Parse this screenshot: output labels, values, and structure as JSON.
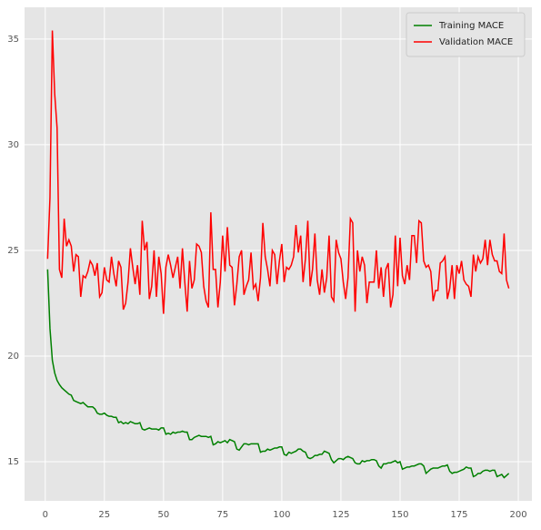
{
  "chart_data": {
    "type": "line",
    "x": [
      1,
      2,
      3,
      4,
      5,
      6,
      7,
      8,
      9,
      10,
      11,
      12,
      13,
      14,
      15,
      16,
      17,
      18,
      19,
      20,
      21,
      22,
      23,
      24,
      25,
      26,
      27,
      28,
      29,
      30,
      31,
      32,
      33,
      34,
      35,
      36,
      37,
      38,
      39,
      40,
      41,
      42,
      43,
      44,
      45,
      46,
      47,
      48,
      49,
      50,
      51,
      52,
      53,
      54,
      55,
      56,
      57,
      58,
      59,
      60,
      61,
      62,
      63,
      64,
      65,
      66,
      67,
      68,
      69,
      70,
      71,
      72,
      73,
      74,
      75,
      76,
      77,
      78,
      79,
      80,
      81,
      82,
      83,
      84,
      85,
      86,
      87,
      88,
      89,
      90,
      91,
      92,
      93,
      94,
      95,
      96,
      97,
      98,
      99,
      100,
      101,
      102,
      103,
      104,
      105,
      106,
      107,
      108,
      109,
      110,
      111,
      112,
      113,
      114,
      115,
      116,
      117,
      118,
      119,
      120,
      121,
      122,
      123,
      124,
      125,
      126,
      127,
      128,
      129,
      130,
      131,
      132,
      133,
      134,
      135,
      136,
      137,
      138,
      139,
      140,
      141,
      142,
      143,
      144,
      145,
      146,
      147,
      148,
      149,
      150,
      151,
      152,
      153,
      154,
      155,
      156,
      157,
      158,
      159,
      160,
      161,
      162,
      163,
      164,
      165,
      166,
      167,
      168,
      169,
      170,
      171,
      172,
      173,
      174,
      175,
      176,
      177,
      178,
      179,
      180,
      181,
      182,
      183,
      184,
      185,
      186,
      187,
      188,
      189,
      190,
      191,
      192,
      193,
      194,
      195,
      196
    ],
    "series": [
      {
        "name": "Training MACE",
        "color": "#008000",
        "values": [
          24.1,
          21.3,
          19.8,
          19.2,
          18.85,
          18.65,
          18.5,
          18.4,
          18.3,
          18.2,
          18.15,
          17.9,
          17.85,
          17.8,
          17.75,
          17.8,
          17.7,
          17.6,
          17.6,
          17.6,
          17.5,
          17.3,
          17.25,
          17.25,
          17.3,
          17.2,
          17.15,
          17.15,
          17.1,
          17.1,
          16.85,
          16.9,
          16.8,
          16.85,
          16.8,
          16.9,
          16.85,
          16.8,
          16.8,
          16.85,
          16.55,
          16.5,
          16.55,
          16.6,
          16.55,
          16.55,
          16.55,
          16.5,
          16.6,
          16.6,
          16.3,
          16.35,
          16.3,
          16.4,
          16.35,
          16.4,
          16.4,
          16.45,
          16.4,
          16.4,
          16.05,
          16.05,
          16.15,
          16.2,
          16.25,
          16.2,
          16.2,
          16.2,
          16.15,
          16.2,
          15.8,
          15.85,
          15.95,
          15.9,
          15.95,
          16.0,
          15.9,
          16.05,
          16.0,
          15.95,
          15.6,
          15.55,
          15.7,
          15.85,
          15.85,
          15.8,
          15.85,
          15.85,
          15.85,
          15.85,
          15.45,
          15.5,
          15.5,
          15.6,
          15.55,
          15.6,
          15.65,
          15.65,
          15.7,
          15.7,
          15.35,
          15.3,
          15.45,
          15.4,
          15.45,
          15.5,
          15.6,
          15.6,
          15.5,
          15.45,
          15.2,
          15.15,
          15.2,
          15.3,
          15.3,
          15.35,
          15.35,
          15.5,
          15.45,
          15.4,
          15.1,
          14.95,
          15.05,
          15.15,
          15.15,
          15.1,
          15.2,
          15.25,
          15.2,
          15.15,
          14.95,
          14.9,
          14.9,
          15.05,
          15.0,
          15.05,
          15.05,
          15.1,
          15.1,
          15.05,
          14.8,
          14.7,
          14.9,
          14.9,
          14.95,
          14.95,
          15.0,
          15.05,
          14.95,
          15.0,
          14.65,
          14.7,
          14.75,
          14.75,
          14.8,
          14.8,
          14.85,
          14.9,
          14.9,
          14.8,
          14.45,
          14.55,
          14.65,
          14.7,
          14.7,
          14.7,
          14.75,
          14.8,
          14.8,
          14.85,
          14.55,
          14.45,
          14.5,
          14.5,
          14.55,
          14.6,
          14.65,
          14.75,
          14.7,
          14.7,
          14.3,
          14.35,
          14.45,
          14.45,
          14.55,
          14.6,
          14.6,
          14.55,
          14.6,
          14.6,
          14.3,
          14.35,
          14.4,
          14.25,
          14.35,
          14.45
        ]
      },
      {
        "name": "Validation MACE",
        "color": "#ff0000",
        "values": [
          24.6,
          27.5,
          35.4,
          32.4,
          30.8,
          24.1,
          23.7,
          26.5,
          25.2,
          25.5,
          25.2,
          24.0,
          24.8,
          24.7,
          22.8,
          23.8,
          23.7,
          24.0,
          24.5,
          24.3,
          23.8,
          24.4,
          22.8,
          23.0,
          24.2,
          23.6,
          23.5,
          24.7,
          23.9,
          23.3,
          24.5,
          24.2,
          22.2,
          22.5,
          23.5,
          25.1,
          24.2,
          23.4,
          24.3,
          22.9,
          26.4,
          25.0,
          25.4,
          22.7,
          23.3,
          25.0,
          22.8,
          24.7,
          23.9,
          22.0,
          24.2,
          24.8,
          24.3,
          23.7,
          24.2,
          24.7,
          23.2,
          25.1,
          23.5,
          22.1,
          24.5,
          23.2,
          23.6,
          25.3,
          25.2,
          24.9,
          23.3,
          22.6,
          22.3,
          26.8,
          24.1,
          24.1,
          22.3,
          23.5,
          25.7,
          24.0,
          26.1,
          24.3,
          24.2,
          22.4,
          23.4,
          24.7,
          25.0,
          22.9,
          23.3,
          23.6,
          24.9,
          23.2,
          23.4,
          22.6,
          23.7,
          26.3,
          24.7,
          24.1,
          23.3,
          25.0,
          24.8,
          23.4,
          24.5,
          25.3,
          23.5,
          24.2,
          24.1,
          24.3,
          24.7,
          26.2,
          24.9,
          25.7,
          23.5,
          24.6,
          26.4,
          23.3,
          24.1,
          25.8,
          23.6,
          22.9,
          24.1,
          23.0,
          23.7,
          25.7,
          22.8,
          22.6,
          25.5,
          24.9,
          24.6,
          23.5,
          22.7,
          23.7,
          26.5,
          26.3,
          22.1,
          25.0,
          24.0,
          24.7,
          24.3,
          22.5,
          23.5,
          23.5,
          23.5,
          25.0,
          23.2,
          24.2,
          22.8,
          24.1,
          24.4,
          22.3,
          22.9,
          25.7,
          23.3,
          25.6,
          23.8,
          23.4,
          24.3,
          23.6,
          25.7,
          25.7,
          24.4,
          26.4,
          26.3,
          24.5,
          24.2,
          24.3,
          24.0,
          22.6,
          23.1,
          23.1,
          24.4,
          24.5,
          24.7,
          22.7,
          23.2,
          24.3,
          22.7,
          24.3,
          23.9,
          24.5,
          23.6,
          23.4,
          23.3,
          22.8,
          24.8,
          24.0,
          24.7,
          24.4,
          24.6,
          25.5,
          24.3,
          25.5,
          24.8,
          24.5,
          24.5,
          24.0,
          23.9,
          25.8,
          23.6,
          23.2
        ]
      }
    ],
    "xlim": [
      -8.75,
      205.75
    ],
    "xticks": [
      0,
      25,
      50,
      75,
      100,
      125,
      150,
      175,
      200
    ],
    "ylim": [
      13.15,
      36.5
    ],
    "yticks": [
      15,
      20,
      25,
      30,
      35
    ],
    "grid": true,
    "legend": "upper right"
  }
}
